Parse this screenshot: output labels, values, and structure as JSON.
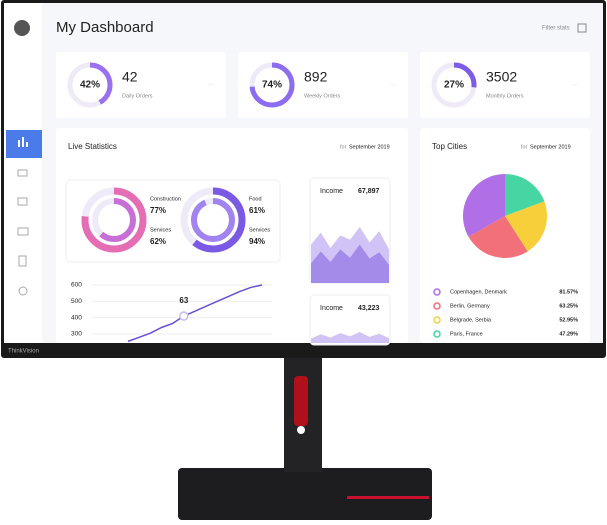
{
  "header": {
    "title": "My Dashboard",
    "filter": "Filter stats"
  },
  "brand": "ThinkVision",
  "stat_cards": [
    {
      "value": 42,
      "label": "Daily Orders",
      "ring_value": 42,
      "ring_label": "42%",
      "color": "#9a6ff0"
    },
    {
      "value": 892,
      "label": "Weekly Orders",
      "ring_value": 74,
      "ring_label": "74%",
      "color": "#8c6cf0"
    },
    {
      "value": 3502,
      "label": "Monthly Orders",
      "ring_value": 27,
      "ring_label": "27%",
      "color": "#7d5ce8"
    }
  ],
  "live_statistics": {
    "title": "Live Statistics",
    "period_prefix": "for",
    "period": "September 2019",
    "donuts": [
      {
        "series": [
          {
            "name": "Construction",
            "value": 77,
            "value_label": "77%",
            "color": "#e56db4"
          },
          {
            "name": "Services",
            "value": 62,
            "value_label": "62%",
            "color": "#c76fd6"
          }
        ]
      },
      {
        "series": [
          {
            "name": "Food",
            "value": 61,
            "value_label": "61%",
            "color": "#7a5ae4"
          },
          {
            "name": "Services",
            "value": 94,
            "value_label": "94%",
            "color": "#a184f0"
          }
        ]
      }
    ],
    "line_chart": {
      "type": "line",
      "categories": [
        null,
        null,
        null,
        null,
        null,
        null,
        null,
        null,
        null,
        null,
        null,
        null,
        null
      ],
      "values": [
        255,
        280,
        305,
        340,
        365,
        410,
        440,
        470,
        500,
        530,
        560,
        585,
        600
      ],
      "color": "#6a4fd8",
      "ylim": [
        250,
        620
      ],
      "yticks": [
        300,
        400,
        500,
        600
      ],
      "annotation": "63"
    },
    "income_cards": [
      {
        "label": "Income",
        "value": "67,897",
        "ylim": [
          0,
          100
        ],
        "series": [
          {
            "color": "#c9b8f3",
            "values": [
              55,
              72,
              50,
              68,
              62,
              80,
              58,
              74,
              48
            ]
          },
          {
            "color": "#9b83e6",
            "values": [
              28,
              45,
              30,
              48,
              36,
              55,
              35,
              44,
              26
            ]
          }
        ]
      },
      {
        "label": "Income",
        "value": "43,223",
        "ylim": [
          0,
          100
        ],
        "series": [
          {
            "color": "#c9b8f3",
            "values": [
              20,
              40,
              25,
              45,
              30,
              50,
              28,
              42,
              22
            ]
          }
        ]
      }
    ]
  },
  "top_cities": {
    "title": "Top Cities",
    "period_prefix": "for",
    "period": "September 2019",
    "chart": {
      "type": "pie",
      "categories": [
        "Copenhagen, Denmark",
        "Berlin, Germany",
        "Belgrade, Serbia",
        "Paris, France"
      ],
      "values": [
        81.57,
        63.25,
        52.95,
        47.29
      ],
      "value_labels": [
        "81.57%",
        "63.25%",
        "52.95%",
        "47.29%"
      ],
      "colors": [
        "#b06fe6",
        "#f2707a",
        "#f7cf3a",
        "#46d6a4"
      ]
    }
  }
}
